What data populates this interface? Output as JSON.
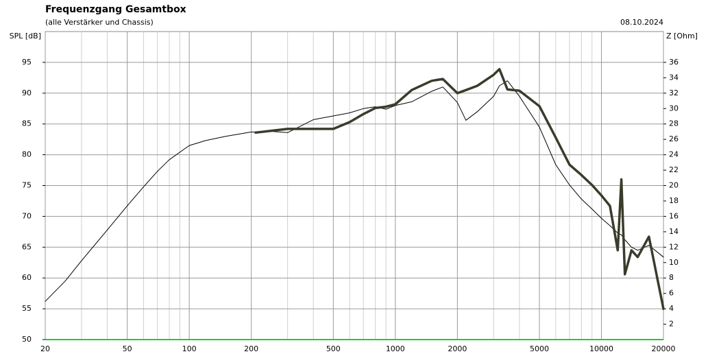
{
  "chart_data": {
    "type": "line",
    "title": "Frequenzgang Gesamtbox",
    "subtitle": "(alle Verstärker und Chassis)",
    "date": "08.10.2024",
    "ylabel": "SPL [dB]",
    "y2label": "Z [Ohm]",
    "xscale": "log",
    "grid": true,
    "x": [
      20,
      25,
      30,
      40,
      50,
      60,
      70,
      80,
      100,
      120,
      150,
      200,
      210,
      250,
      300,
      400,
      500,
      600,
      700,
      800,
      900,
      1000,
      1200,
      1500,
      1700,
      2000,
      2200,
      2500,
      3000,
      3200,
      3500,
      4000,
      5000,
      6000,
      7000,
      8000,
      9000,
      10000,
      11000,
      12000,
      12500,
      13000,
      14000,
      15000,
      17000,
      20000
    ],
    "xlim": [
      20,
      20000
    ],
    "xticks": [
      20,
      50,
      100,
      200,
      500,
      1000,
      2000,
      5000,
      10000,
      20000
    ],
    "xgrid_minor": [
      30,
      40,
      60,
      70,
      80,
      90,
      300,
      400,
      600,
      700,
      800,
      900,
      3000,
      4000,
      6000,
      7000,
      8000,
      9000
    ],
    "ylim": [
      50,
      100
    ],
    "yticks": [
      50,
      55,
      60,
      65,
      70,
      75,
      80,
      85,
      90,
      95
    ],
    "y2lim": [
      0,
      40
    ],
    "y2ticks": [
      2,
      4,
      6,
      8,
      10,
      12,
      14,
      16,
      18,
      20,
      22,
      24,
      26,
      28,
      30,
      32,
      34,
      36
    ],
    "baseline_color": "#22cc22",
    "series": [
      {
        "color": "#000000",
        "width": 1,
        "values": [
          56.2,
          59.5,
          62.8,
          67.8,
          71.7,
          74.8,
          77.3,
          79.2,
          81.5,
          82.3,
          83.0,
          83.7,
          83.7,
          83.8,
          83.6,
          85.7,
          86.3,
          86.8,
          87.5,
          87.8,
          87.4,
          88.0,
          88.6,
          90.3,
          91.0,
          88.5,
          85.6,
          87.0,
          89.5,
          91.2,
          92.0,
          89.5,
          84.5,
          78.4,
          75.1,
          72.8,
          71.2,
          69.7,
          68.5,
          67.3,
          67.0,
          66.2,
          65.0,
          64.5,
          65.3,
          63.4
        ]
      },
      {
        "color": "#3b3b2c",
        "width": 3.5,
        "values": [
          null,
          null,
          null,
          null,
          null,
          null,
          null,
          null,
          null,
          null,
          null,
          null,
          83.6,
          83.9,
          84.2,
          84.2,
          84.2,
          85.3,
          86.6,
          87.6,
          87.8,
          88.2,
          90.5,
          92.0,
          92.3,
          90.0,
          90.5,
          91.2,
          93.0,
          93.9,
          90.6,
          90.4,
          87.9,
          82.8,
          78.4,
          76.7,
          75.1,
          73.4,
          71.7,
          64.5,
          76.0,
          60.6,
          64.5,
          63.4,
          66.7,
          55.0
        ]
      }
    ]
  }
}
